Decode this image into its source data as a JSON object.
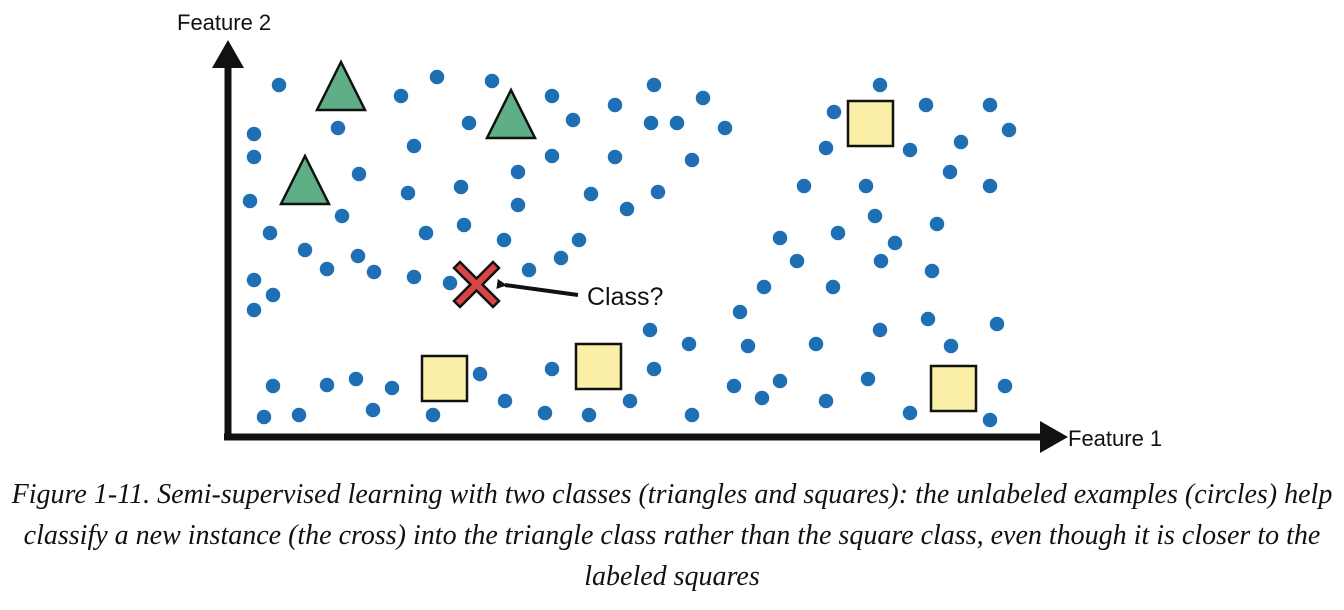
{
  "axes": {
    "x_label": "Feature 1",
    "y_label": "Feature 2"
  },
  "callout": {
    "label": "Class?"
  },
  "colors": {
    "unlabeled_circle": "#1f6fb4",
    "triangle_fill": "#5fae86",
    "square_fill": "#fbf0a8",
    "cross": "#d94444",
    "axis": "#111111"
  },
  "caption": "Figure 1-11. Semi-supervised learning with two classes (triangles and squares): the unlabeled examples (circles) help classify a new instance (the cross) into the triangle class rather than the square class, even though it is closer to the labeled squares"
}
